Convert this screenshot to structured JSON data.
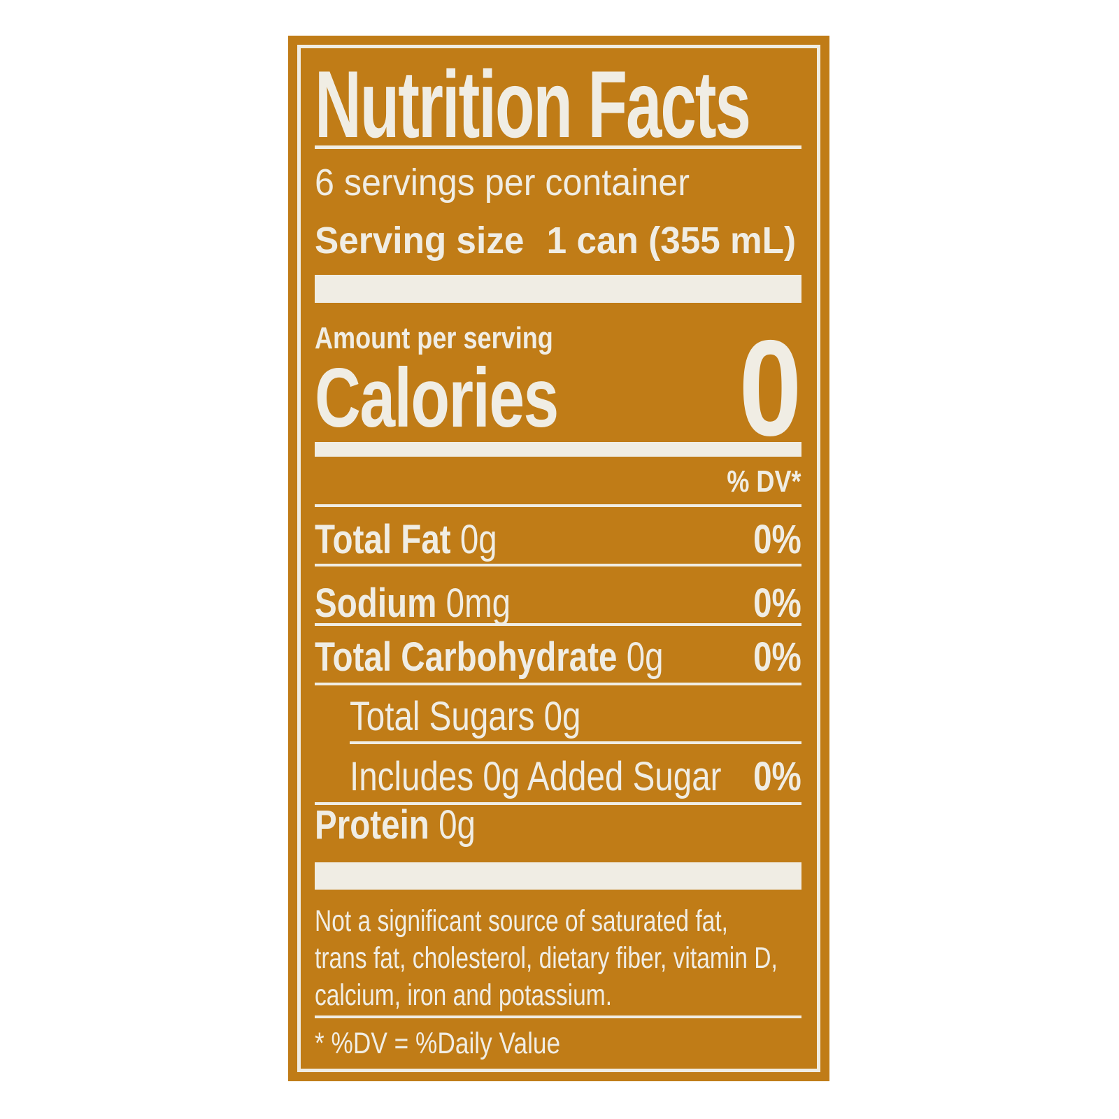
{
  "label": {
    "background_color": "#c07c17",
    "text_color": "#f0ede4",
    "title": "Nutrition Facts",
    "servings_per_container": "6 servings per container",
    "serving_size_label": "Serving size",
    "serving_size_value": "1 can (355 mL)",
    "amount_per_serving": "Amount per serving",
    "calories_label": "Calories",
    "calories_value": "0",
    "dv_header": "% DV*",
    "rows": [
      {
        "name": "Total Fat",
        "amount": "0g",
        "dv": "0%"
      },
      {
        "name": "Sodium",
        "amount": "0mg",
        "dv": "0%"
      },
      {
        "name": "Total Carbohydrate",
        "amount": "0g",
        "dv": "0%"
      },
      {
        "name": "Total Sugars 0g",
        "amount": "",
        "dv": ""
      },
      {
        "name": "Includes 0g Added Sugar",
        "amount": "",
        "dv": "0%"
      },
      {
        "name": "Protein",
        "amount": "0g",
        "dv": ""
      }
    ],
    "footnote_lines": [
      "Not a significant source of saturated fat,",
      "trans fat, cholesterol, dietary fiber, vitamin D,",
      "calcium, iron and potassium."
    ],
    "dv_definition": "* %DV = %Daily Value"
  }
}
